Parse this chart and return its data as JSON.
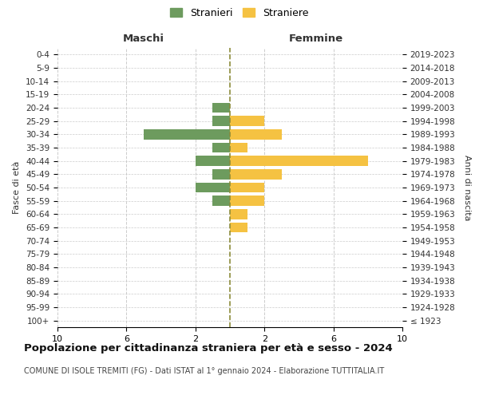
{
  "age_groups": [
    "100+",
    "95-99",
    "90-94",
    "85-89",
    "80-84",
    "75-79",
    "70-74",
    "65-69",
    "60-64",
    "55-59",
    "50-54",
    "45-49",
    "40-44",
    "35-39",
    "30-34",
    "25-29",
    "20-24",
    "15-19",
    "10-14",
    "5-9",
    "0-4"
  ],
  "birth_years": [
    "≤ 1923",
    "1924-1928",
    "1929-1933",
    "1934-1938",
    "1939-1943",
    "1944-1948",
    "1949-1953",
    "1954-1958",
    "1959-1963",
    "1964-1968",
    "1969-1973",
    "1974-1978",
    "1979-1983",
    "1984-1988",
    "1989-1993",
    "1994-1998",
    "1999-2003",
    "2004-2008",
    "2009-2013",
    "2014-2018",
    "2019-2023"
  ],
  "maschi": [
    0,
    0,
    0,
    0,
    0,
    0,
    0,
    0,
    0,
    1,
    2,
    1,
    2,
    1,
    5,
    1,
    1,
    0,
    0,
    0,
    0
  ],
  "femmine": [
    0,
    0,
    0,
    0,
    0,
    0,
    0,
    1,
    1,
    2,
    2,
    3,
    8,
    1,
    3,
    2,
    0,
    0,
    0,
    0,
    0
  ],
  "maschi_color": "#6d9b5e",
  "femmine_color": "#f5c242",
  "bg_color": "#ffffff",
  "grid_color": "#cccccc",
  "center_line_color": "#8b8b3a",
  "title": "Popolazione per cittadinanza straniera per età e sesso - 2024",
  "subtitle": "COMUNE DI ISOLE TREMITI (FG) - Dati ISTAT al 1° gennaio 2024 - Elaborazione TUTTITALIA.IT",
  "left_label": "Maschi",
  "right_label": "Femmine",
  "ylabel_left": "Fasce di età",
  "ylabel_right": "Anni di nascita",
  "legend_stranieri": "Stranieri",
  "legend_straniere": "Straniere",
  "xlim": 10
}
